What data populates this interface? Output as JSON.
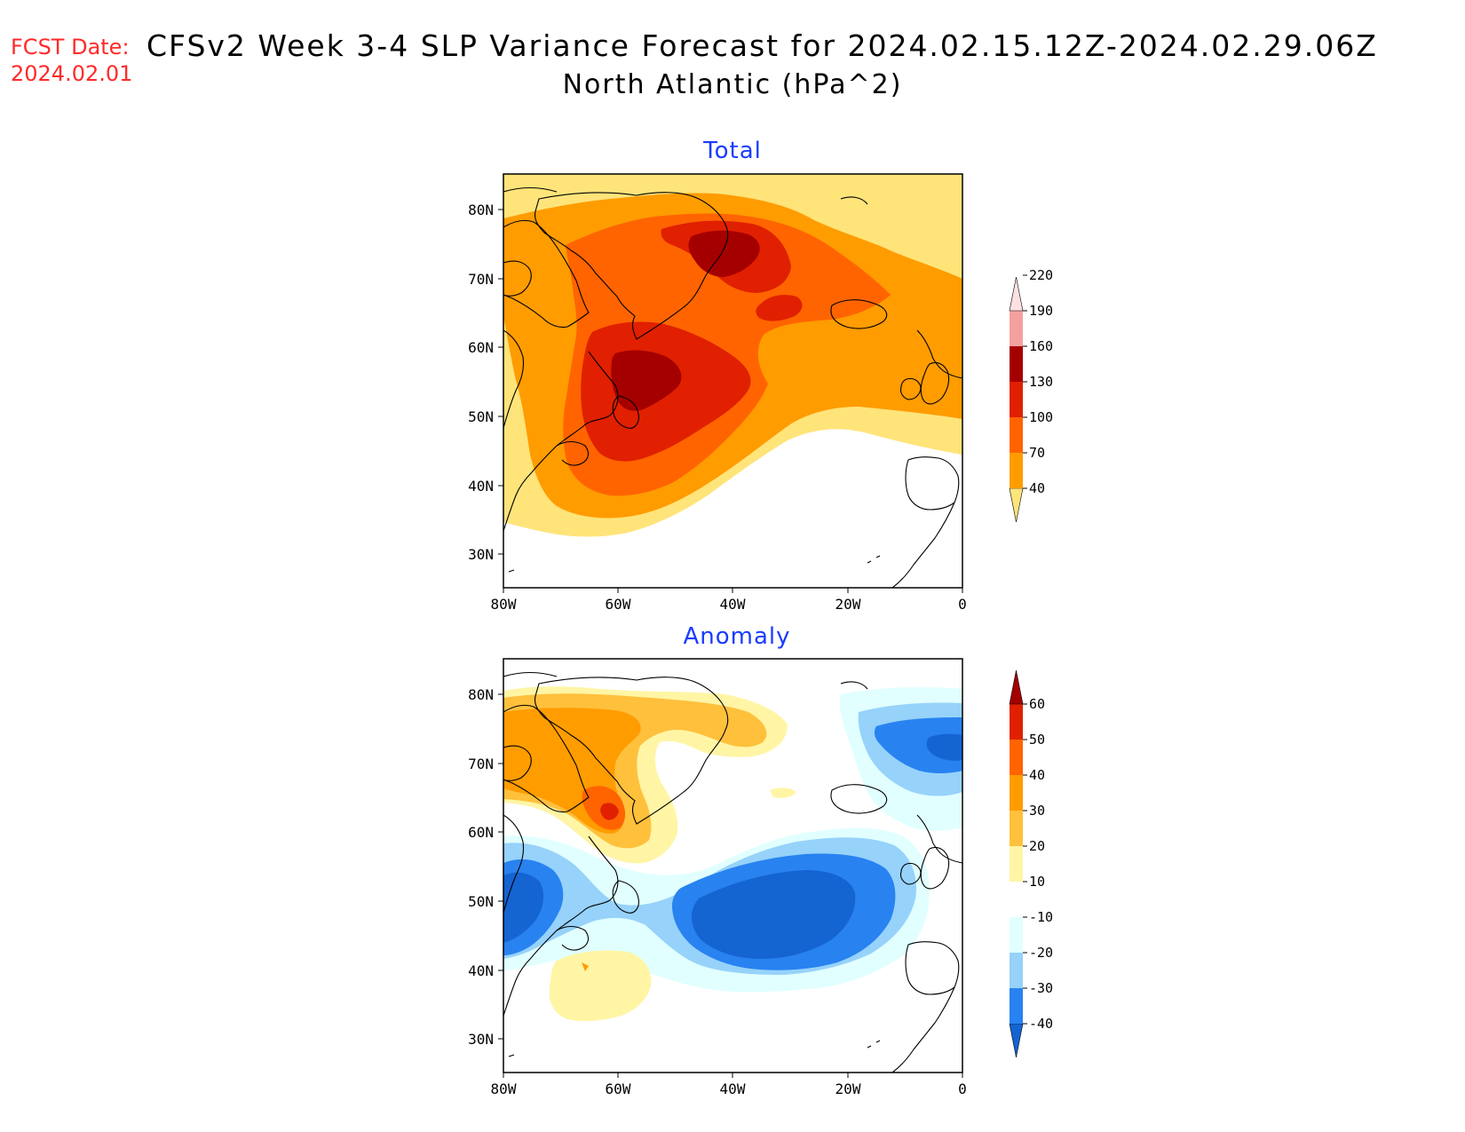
{
  "header": {
    "fcst_label": "FCST Date:",
    "fcst_date": "2024.02.01",
    "title_line1": "CFSv2 Week 3-4 SLP Variance Forecast for 2024.02.15.12Z-2024.02.29.06Z",
    "title_line2": "North Atlantic (hPa^2)"
  },
  "map_extent": {
    "lon": [
      -80,
      0
    ],
    "lat": [
      25,
      85
    ]
  },
  "panels": [
    {
      "title": "Total",
      "lat_labels": [
        "80N",
        "70N",
        "60N",
        "50N",
        "40N",
        "30N"
      ],
      "lon_labels": [
        "80W",
        "60W",
        "40W",
        "20W",
        "0"
      ],
      "colorbar": {
        "levels": [
          "40",
          "70",
          "100",
          "130",
          "160",
          "190",
          "220"
        ],
        "colors": [
          "#ffe47a",
          "#ff9c00",
          "#ff6400",
          "#e02000",
          "#a50000",
          "#f4a0a0",
          "#fde0e0"
        ]
      }
    },
    {
      "title": "Anomaly",
      "lat_labels": [
        "80N",
        "70N",
        "60N",
        "50N",
        "40N",
        "30N"
      ],
      "lon_labels": [
        "80W",
        "60W",
        "40W",
        "20W",
        "0"
      ],
      "colorbar": {
        "levels": [
          "-40",
          "-30",
          "-20",
          "-10",
          "10",
          "20",
          "30",
          "40",
          "50",
          "60"
        ],
        "colors": [
          "#1464d2",
          "#2882f0",
          "#96d2fa",
          "#e1ffff",
          "#ffffff",
          "#fff5a5",
          "#ffc03c",
          "#ff9c00",
          "#ff6400",
          "#e02000",
          "#a50000"
        ]
      }
    }
  ]
}
